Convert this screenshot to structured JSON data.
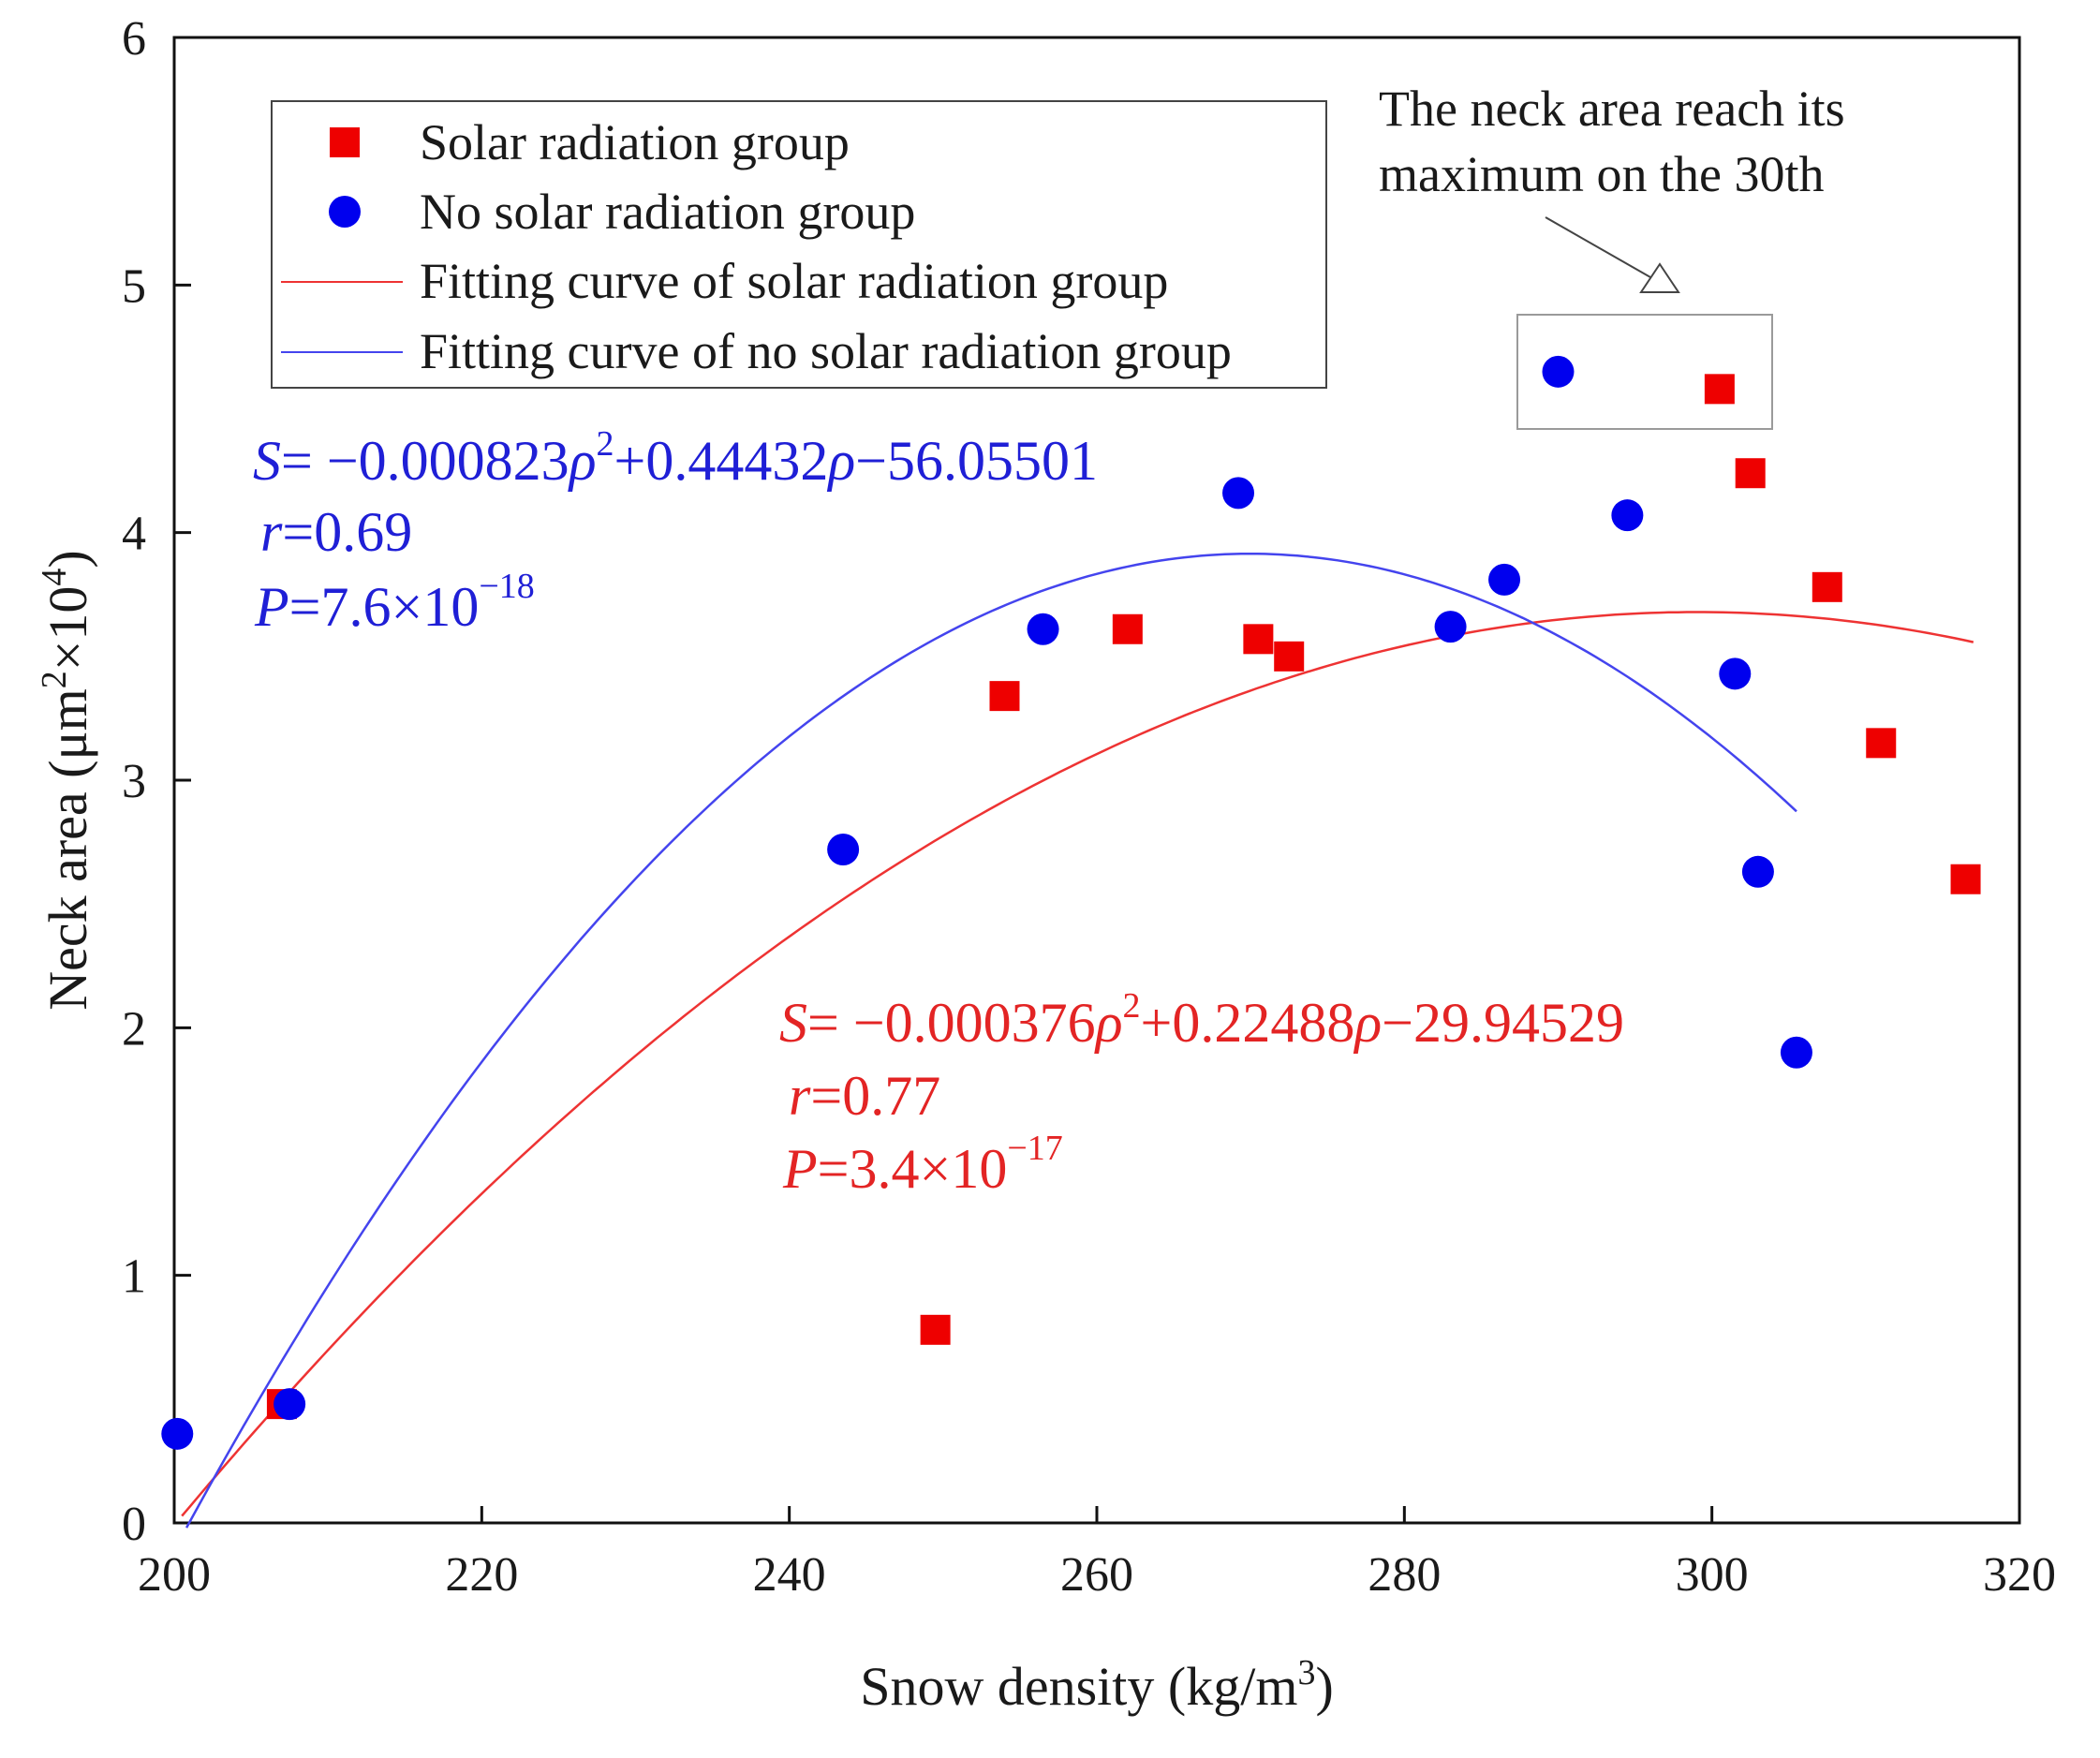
{
  "chart_data": {
    "type": "scatter",
    "title": "",
    "xlabel": "Snow density (kg/m",
    "xlabel_sup": "3",
    "xlabel_close": ")",
    "ylabel": "Neck area (μm",
    "ylabel_sup1": "2",
    "ylabel_mid": "×10",
    "ylabel_sup2": "4",
    "ylabel_close": ")",
    "xlim": [
      200,
      320
    ],
    "ylim": [
      0,
      6
    ],
    "xticks": [
      "200",
      "220",
      "240",
      "260",
      "280",
      "300",
      "320"
    ],
    "yticks": [
      "0",
      "1",
      "2",
      "3",
      "4",
      "5",
      "6"
    ],
    "grid": false,
    "legend_position": "top-left",
    "legend": {
      "solar_points": "Solar radiation group",
      "nosolar_points": "No solar radiation group",
      "solar_fit": "Fitting curve of solar radiation group",
      "nosolar_fit": "Fitting curve of no solar radiation group"
    },
    "series": [
      {
        "name": "Solar radiation group",
        "marker": "square",
        "color": "#ee0000",
        "x": [
          207,
          249.5,
          254,
          262,
          270.5,
          272.5,
          300.5,
          302.5,
          307.5,
          311,
          316.5
        ],
        "y": [
          0.48,
          0.78,
          3.34,
          3.61,
          3.57,
          3.5,
          4.58,
          4.24,
          3.78,
          3.15,
          2.6
        ]
      },
      {
        "name": "No solar radiation group",
        "marker": "circle",
        "color": "#0000ee",
        "x": [
          200.2,
          207.5,
          243.5,
          256.5,
          269.2,
          283,
          286.5,
          290,
          294.5,
          301.5,
          303,
          305.5
        ],
        "y": [
          0.36,
          0.48,
          2.72,
          3.61,
          4.16,
          3.62,
          3.81,
          4.65,
          4.07,
          3.43,
          2.63,
          1.9
        ]
      }
    ],
    "fits": [
      {
        "name": "Fitting curve of solar radiation group",
        "color": "#ee3333",
        "a": -0.000376,
        "b": 0.22488,
        "c": -29.94529,
        "x_range": [
          200.5,
          317
        ]
      },
      {
        "name": "Fitting curve of no solar radiation group",
        "color": "#4444ee",
        "a": -0.000823,
        "b": 0.44432,
        "c": -56.05501,
        "x_range": [
          200.8,
          305.5
        ]
      }
    ],
    "equations": {
      "nosolar": {
        "color": "#1f1fd6",
        "S": "S",
        "expr1": "= −0.000823",
        "rho1": "ρ",
        "sup": "2",
        "expr2": "+0.44432",
        "rho2": "ρ",
        "expr3": "−56.05501",
        "r_label": "r",
        "r_value": "=0.69",
        "p_label": "P",
        "p_value": "=7.6×10",
        "p_exp": "−18"
      },
      "solar": {
        "color": "#e32424",
        "S": "S",
        "expr1": "= −0.000376",
        "rho1": "ρ",
        "sup": "2",
        "expr2": "+0.22488",
        "rho2": "ρ",
        "expr3": "−29.94529",
        "r_label": "r",
        "r_value": "=0.77",
        "p_label": "P",
        "p_value": "=3.4×10",
        "p_exp": "−17"
      }
    },
    "annotation": {
      "line1": "The neck area reach its",
      "line2": "maximum on the 30th"
    }
  }
}
